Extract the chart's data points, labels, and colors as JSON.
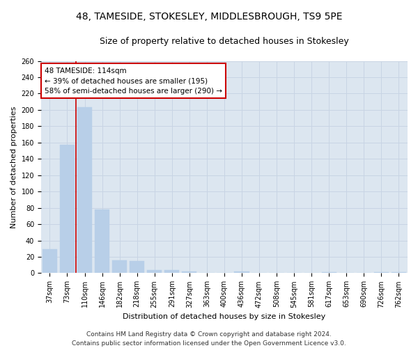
{
  "title1": "48, TAMESIDE, STOKESLEY, MIDDLESBROUGH, TS9 5PE",
  "title2": "Size of property relative to detached houses in Stokesley",
  "xlabel": "Distribution of detached houses by size in Stokesley",
  "ylabel": "Number of detached properties",
  "categories": [
    "37sqm",
    "73sqm",
    "110sqm",
    "146sqm",
    "182sqm",
    "218sqm",
    "255sqm",
    "291sqm",
    "327sqm",
    "363sqm",
    "400sqm",
    "436sqm",
    "472sqm",
    "508sqm",
    "545sqm",
    "581sqm",
    "617sqm",
    "653sqm",
    "690sqm",
    "726sqm",
    "762sqm"
  ],
  "values": [
    29,
    157,
    203,
    78,
    16,
    15,
    4,
    4,
    2,
    0,
    0,
    2,
    0,
    0,
    0,
    0,
    1,
    0,
    0,
    1,
    1
  ],
  "bar_color": "#b8cfe8",
  "bar_edge_color": "#b8cfe8",
  "grid_color": "#c8d4e4",
  "bg_color": "#dce6f0",
  "vline_color": "#cc0000",
  "annotation_text": "48 TAMESIDE: 114sqm\n← 39% of detached houses are smaller (195)\n58% of semi-detached houses are larger (290) →",
  "annotation_box_color": "#cc0000",
  "ylim": [
    0,
    260
  ],
  "yticks": [
    0,
    20,
    40,
    60,
    80,
    100,
    120,
    140,
    160,
    180,
    200,
    220,
    240,
    260
  ],
  "footer1": "Contains HM Land Registry data © Crown copyright and database right 2024.",
  "footer2": "Contains public sector information licensed under the Open Government Licence v3.0.",
  "title_fontsize": 10,
  "subtitle_fontsize": 9,
  "axis_label_fontsize": 8,
  "tick_fontsize": 7,
  "annotation_fontsize": 7.5,
  "footer_fontsize": 6.5
}
